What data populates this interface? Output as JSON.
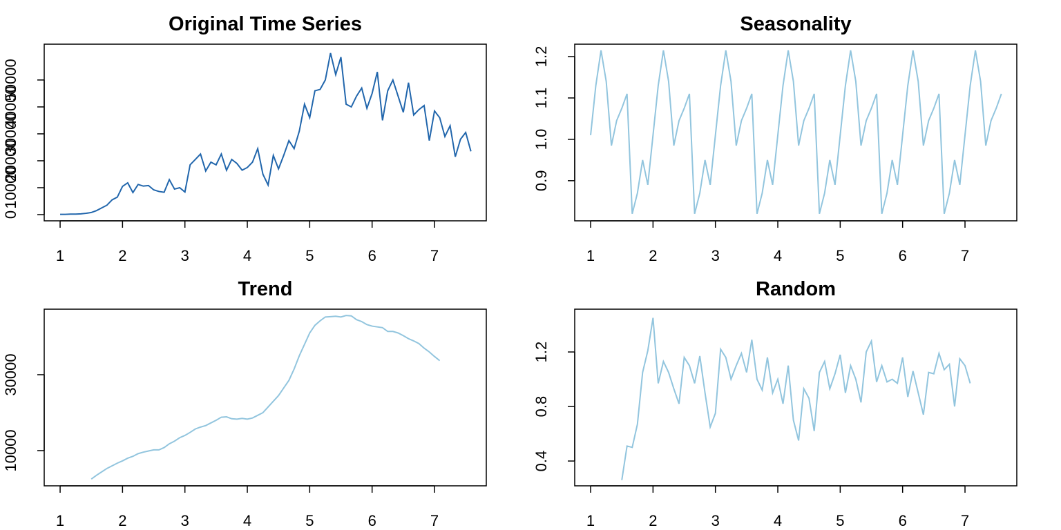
{
  "chart_data": [
    {
      "type": "line",
      "title": "Original Time Series",
      "color": "#2166ac",
      "x": [
        1,
        1.0833,
        1.1667,
        1.25,
        1.3333,
        1.4167,
        1.5,
        1.5833,
        1.6667,
        1.75,
        1.8333,
        1.9167,
        2,
        2.0833,
        2.1667,
        2.25,
        2.3333,
        2.4167,
        2.5,
        2.5833,
        2.6667,
        2.75,
        2.8333,
        2.9167,
        3,
        3.0833,
        3.1667,
        3.25,
        3.3333,
        3.4167,
        3.5,
        3.5833,
        3.6667,
        3.75,
        3.8333,
        3.9167,
        4,
        4.0833,
        4.1667,
        4.25,
        4.3333,
        4.4167,
        4.5,
        4.5833,
        4.6667,
        4.75,
        4.8333,
        4.9167,
        5,
        5.0833,
        5.1667,
        5.25,
        5.3333,
        5.4167,
        5.5,
        5.5833,
        5.6667,
        5.75,
        5.8333,
        5.9167,
        6,
        6.0833,
        6.1667,
        6.25,
        6.3333,
        6.4167,
        6.5,
        6.5833,
        6.6667,
        6.75,
        6.8333,
        6.9167,
        7,
        7.0833,
        7.1667,
        7.25,
        7.3333,
        7.4167,
        7.5,
        7.5833
      ],
      "values": [
        100,
        100,
        200,
        200,
        300,
        500,
        800,
        1500,
        2500,
        3500,
        5500,
        6500,
        10500,
        11800,
        8200,
        11200,
        10600,
        10800,
        9200,
        8600,
        8300,
        13000,
        9500,
        10000,
        8400,
        18500,
        20500,
        22500,
        16200,
        19500,
        18500,
        22500,
        16500,
        20500,
        19000,
        16500,
        17500,
        19500,
        24500,
        15000,
        11000,
        22000,
        17000,
        22000,
        27500,
        24500,
        31000,
        41000,
        36000,
        46000,
        46500,
        50000,
        60000,
        52000,
        58500,
        41000,
        40000,
        44000,
        47000,
        39500,
        45000,
        53000,
        35000,
        46000,
        50000,
        44000,
        38000,
        49000,
        37000,
        39000,
        40500,
        27500,
        38500,
        36000,
        29000,
        33000,
        21500,
        28000,
        30500,
        23500
      ],
      "xlim": [
        0.745,
        7.83
      ],
      "xticks": [
        1,
        2,
        3,
        4,
        5,
        6,
        7
      ],
      "ylim": [
        -2300,
        63300
      ],
      "yticks": [
        0,
        10000,
        20000,
        30000,
        40000,
        50000
      ]
    },
    {
      "type": "line",
      "title": "Seasonality",
      "color": "#92c5de",
      "x": [
        1,
        1.0833,
        1.1667,
        1.25,
        1.3333,
        1.4167,
        1.5,
        1.5833,
        1.6667,
        1.75,
        1.8333,
        1.9167,
        2,
        2.0833,
        2.1667,
        2.25,
        2.3333,
        2.4167,
        2.5,
        2.5833,
        2.6667,
        2.75,
        2.8333,
        2.9167,
        3,
        3.0833,
        3.1667,
        3.25,
        3.3333,
        3.4167,
        3.5,
        3.5833,
        3.6667,
        3.75,
        3.8333,
        3.9167,
        4,
        4.0833,
        4.1667,
        4.25,
        4.3333,
        4.4167,
        4.5,
        4.5833,
        4.6667,
        4.75,
        4.8333,
        4.9167,
        5,
        5.0833,
        5.1667,
        5.25,
        5.3333,
        5.4167,
        5.5,
        5.5833,
        5.6667,
        5.75,
        5.8333,
        5.9167,
        6,
        6.0833,
        6.1667,
        6.25,
        6.3333,
        6.4167,
        6.5,
        6.5833,
        6.6667,
        6.75,
        6.8333,
        6.9167,
        7,
        7.0833,
        7.1667,
        7.25,
        7.3333,
        7.4167,
        7.5,
        7.5833
      ],
      "values": [
        1.01,
        1.13,
        1.215,
        1.14,
        0.985,
        1.045,
        1.075,
        1.11,
        0.82,
        0.87,
        0.95,
        0.89,
        1.01,
        1.13,
        1.215,
        1.14,
        0.985,
        1.045,
        1.075,
        1.11,
        0.82,
        0.87,
        0.95,
        0.89,
        1.01,
        1.13,
        1.215,
        1.14,
        0.985,
        1.045,
        1.075,
        1.11,
        0.82,
        0.87,
        0.95,
        0.89,
        1.01,
        1.13,
        1.215,
        1.14,
        0.985,
        1.045,
        1.075,
        1.11,
        0.82,
        0.87,
        0.95,
        0.89,
        1.01,
        1.13,
        1.215,
        1.14,
        0.985,
        1.045,
        1.075,
        1.11,
        0.82,
        0.87,
        0.95,
        0.89,
        1.01,
        1.13,
        1.215,
        1.14,
        0.985,
        1.045,
        1.075,
        1.11,
        0.82,
        0.87,
        0.95,
        0.89,
        1.01,
        1.13,
        1.215,
        1.14,
        0.985,
        1.045,
        1.075,
        1.11
      ],
      "xlim": [
        0.745,
        7.83
      ],
      "xticks": [
        1,
        2,
        3,
        4,
        5,
        6,
        7
      ],
      "ylim": [
        0.803,
        1.23
      ],
      "yticks": [
        0.9,
        {
          "value": 1,
          "label": "1.0"
        },
        1.1,
        1.2
      ]
    },
    {
      "type": "line",
      "title": "Trend",
      "color": "#92c5de",
      "x": [
        1.5,
        1.5833,
        1.6667,
        1.75,
        1.8333,
        1.9167,
        2,
        2.0833,
        2.1667,
        2.25,
        2.3333,
        2.4167,
        2.5,
        2.5833,
        2.6667,
        2.75,
        2.8333,
        2.9167,
        3,
        3.0833,
        3.1667,
        3.25,
        3.3333,
        3.4167,
        3.5,
        3.5833,
        3.6667,
        3.75,
        3.8333,
        3.9167,
        4,
        4.0833,
        4.1667,
        4.25,
        4.3333,
        4.4167,
        4.5,
        4.5833,
        4.6667,
        4.75,
        4.8333,
        4.9167,
        5,
        5.0833,
        5.1667,
        5.25,
        5.3333,
        5.4167,
        5.5,
        5.5833,
        5.6667,
        5.75,
        5.8333,
        5.9167,
        6,
        6.0833,
        6.1667,
        6.25,
        6.3333,
        6.4167,
        6.5,
        6.5833,
        6.6667,
        6.75,
        6.8333,
        6.9167,
        7,
        7.0833
      ],
      "values": [
        2500,
        3500,
        4400,
        5300,
        6000,
        6700,
        7300,
        8000,
        8500,
        9200,
        9600,
        9900,
        10200,
        10200,
        10800,
        11800,
        12500,
        13400,
        14000,
        14800,
        15700,
        16200,
        16600,
        17300,
        18000,
        18800,
        18900,
        18400,
        18300,
        18500,
        18300,
        18600,
        19300,
        20000,
        21500,
        23000,
        24500,
        26500,
        28500,
        31500,
        35000,
        38000,
        41000,
        43000,
        44200,
        45200,
        45300,
        45400,
        45200,
        45600,
        45500,
        44500,
        44000,
        43200,
        42800,
        42600,
        42400,
        41400,
        41400,
        41000,
        40300,
        39500,
        38900,
        38200,
        37000,
        36000,
        34800,
        33700
      ],
      "xlim": [
        0.745,
        7.83
      ],
      "xticks": [
        1,
        2,
        3,
        4,
        5,
        6,
        7
      ],
      "ylim": [
        720,
        47270
      ],
      "yticks": [
        10000,
        30000
      ]
    },
    {
      "type": "line",
      "title": "Random",
      "color": "#92c5de",
      "x": [
        1.5,
        1.5833,
        1.6667,
        1.75,
        1.8333,
        1.9167,
        2,
        2.0833,
        2.1667,
        2.25,
        2.3333,
        2.4167,
        2.5,
        2.5833,
        2.6667,
        2.75,
        2.8333,
        2.9167,
        3,
        3.0833,
        3.1667,
        3.25,
        3.3333,
        3.4167,
        3.5,
        3.5833,
        3.6667,
        3.75,
        3.8333,
        3.9167,
        4,
        4.0833,
        4.1667,
        4.25,
        4.3333,
        4.4167,
        4.5,
        4.5833,
        4.6667,
        4.75,
        4.8333,
        4.9167,
        5,
        5.0833,
        5.1667,
        5.25,
        5.3333,
        5.4167,
        5.5,
        5.5833,
        5.6667,
        5.75,
        5.8333,
        5.9167,
        6,
        6.0833,
        6.1667,
        6.25,
        6.3333,
        6.4167,
        6.5,
        6.5833,
        6.6667,
        6.75,
        6.8333,
        6.9167,
        7,
        7.0833
      ],
      "values": [
        0.26,
        0.51,
        0.5,
        0.67,
        1.05,
        1.21,
        1.45,
        0.97,
        1.13,
        1.05,
        0.93,
        0.82,
        1.16,
        1.1,
        0.97,
        1.17,
        0.9,
        0.65,
        0.75,
        1.22,
        1.16,
        1.0,
        1.1,
        1.19,
        1.05,
        1.29,
        1.0,
        0.92,
        1.16,
        0.9,
        1.0,
        0.82,
        1.1,
        0.7,
        0.55,
        0.93,
        0.86,
        0.62,
        1.05,
        1.13,
        0.93,
        1.04,
        1.18,
        0.9,
        1.1,
        1.0,
        0.83,
        1.2,
        1.28,
        0.98,
        1.1,
        0.98,
        1.0,
        0.97,
        1.16,
        0.87,
        1.06,
        0.9,
        0.74,
        1.05,
        1.04,
        1.19,
        1.07,
        1.11,
        0.8,
        1.15,
        1.1,
        0.97
      ],
      "xlim": [
        0.745,
        7.83
      ],
      "xticks": [
        1,
        2,
        3,
        4,
        5,
        6,
        7
      ],
      "ylim": [
        0.218,
        1.514
      ],
      "yticks": [
        0.4,
        0.8,
        1.2
      ]
    }
  ]
}
